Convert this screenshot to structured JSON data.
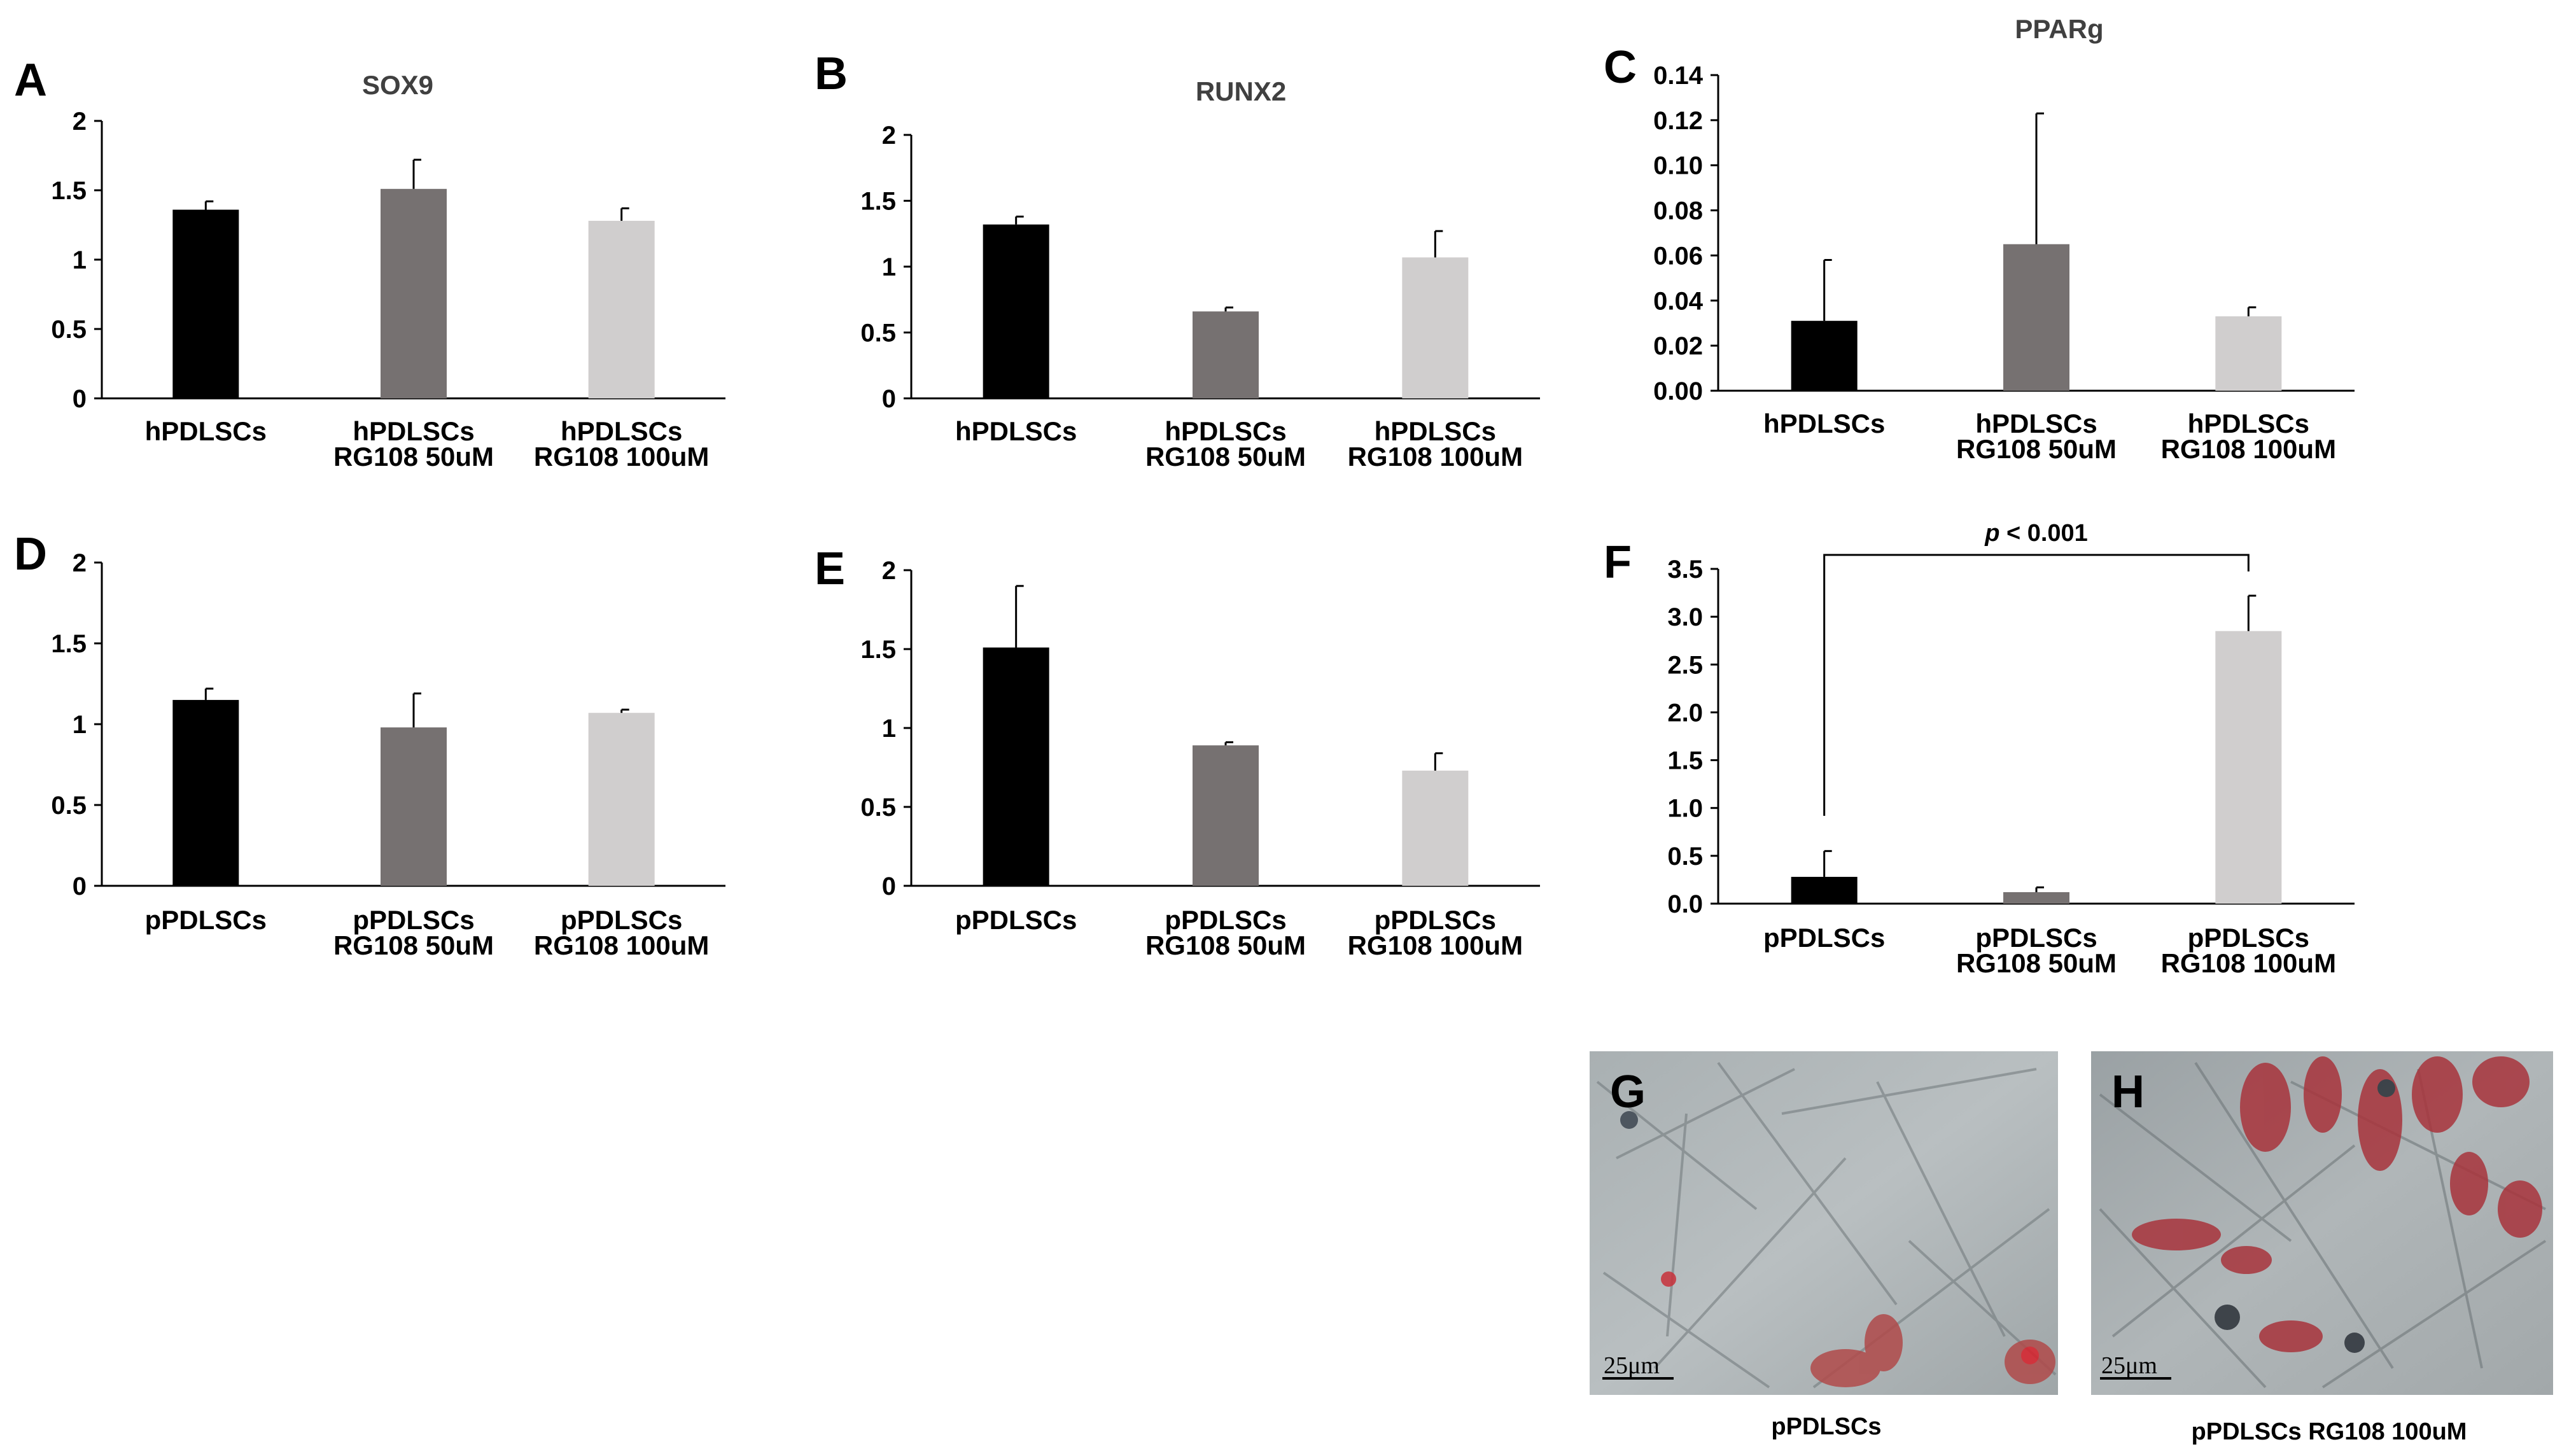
{
  "colors": {
    "bar1": "#000000",
    "bar2": "#767171",
    "bar3": "#d0cece"
  },
  "chart_data": [
    {
      "type": "bar",
      "panel": "A",
      "title": "SOX9",
      "xlabel": "",
      "ylabel": "",
      "categories": [
        [
          "hPDLSCs"
        ],
        [
          "hPDLSCs",
          "RG108 50uM"
        ],
        [
          "hPDLSCs",
          "RG108 100uM"
        ]
      ],
      "values": [
        1.36,
        1.51,
        1.28
      ],
      "errors": [
        0.06,
        0.21,
        0.09
      ],
      "ylim": [
        0,
        2
      ],
      "yticks": [
        "0",
        "0.5",
        "1",
        "1.5",
        "2"
      ]
    },
    {
      "type": "bar",
      "panel": "B",
      "title": "RUNX2",
      "xlabel": "",
      "ylabel": "",
      "categories": [
        [
          "hPDLSCs"
        ],
        [
          "hPDLSCs",
          "RG108 50uM"
        ],
        [
          "hPDLSCs",
          "RG108 100uM"
        ]
      ],
      "values": [
        1.32,
        0.66,
        1.07
      ],
      "errors": [
        0.06,
        0.03,
        0.2
      ],
      "ylim": [
        0,
        2
      ],
      "yticks": [
        "0",
        "0.5",
        "1",
        "1.5",
        "2"
      ]
    },
    {
      "type": "bar",
      "panel": "C",
      "title": "PPARg",
      "xlabel": "",
      "ylabel": "",
      "categories": [
        [
          "hPDLSCs"
        ],
        [
          "hPDLSCs",
          "RG108 50uM"
        ],
        [
          "hPDLSCs",
          "RG108 100uM"
        ]
      ],
      "values": [
        0.031,
        0.065,
        0.033
      ],
      "errors": [
        0.027,
        0.058,
        0.004
      ],
      "ylim": [
        0,
        0.14
      ],
      "yticks": [
        "0.00",
        "0.02",
        "0.04",
        "0.06",
        "0.08",
        "0.10",
        "0.12",
        "0.14"
      ]
    },
    {
      "type": "bar",
      "panel": "D",
      "title": "",
      "xlabel": "",
      "ylabel": "",
      "categories": [
        [
          "pPDLSCs"
        ],
        [
          "pPDLSCs",
          "RG108 50uM"
        ],
        [
          "pPDLSCs",
          "RG108 100uM"
        ]
      ],
      "values": [
        1.15,
        0.98,
        1.07
      ],
      "errors": [
        0.07,
        0.21,
        0.02
      ],
      "ylim": [
        0,
        2
      ],
      "yticks": [
        "0",
        "0.5",
        "1",
        "1.5",
        "2"
      ]
    },
    {
      "type": "bar",
      "panel": "E",
      "title": "",
      "xlabel": "",
      "ylabel": "",
      "categories": [
        [
          "pPDLSCs"
        ],
        [
          "pPDLSCs",
          "RG108 50uM"
        ],
        [
          "pPDLSCs",
          "RG108 100uM"
        ]
      ],
      "values": [
        1.51,
        0.89,
        0.73
      ],
      "errors": [
        0.39,
        0.02,
        0.11
      ],
      "ylim": [
        0,
        2
      ],
      "yticks": [
        "0",
        "0.5",
        "1",
        "1.5",
        "2"
      ]
    },
    {
      "type": "bar",
      "panel": "F",
      "title": "",
      "xlabel": "",
      "ylabel": "",
      "categories": [
        [
          "pPDLSCs"
        ],
        [
          "pPDLSCs",
          "RG108 50uM"
        ],
        [
          "pPDLSCs",
          "RG108 100uM"
        ]
      ],
      "values": [
        0.28,
        0.12,
        2.85
      ],
      "errors": [
        0.27,
        0.05,
        0.37
      ],
      "ylim": [
        0,
        3.5
      ],
      "yticks": [
        "0.0",
        "0.5",
        "1.0",
        "1.5",
        "2.0",
        "2.5",
        "3.0",
        "3.5"
      ],
      "annotation": {
        "text_p": "p",
        "text_rest": " < 0.001",
        "from": 0,
        "to": 2
      }
    }
  ],
  "photos": [
    {
      "panel": "G",
      "scale_bar": "25μm",
      "caption": "pPDLSCs"
    },
    {
      "panel": "H",
      "scale_bar": "25μm",
      "caption": "pPDLSCs RG108 100uM"
    }
  ]
}
